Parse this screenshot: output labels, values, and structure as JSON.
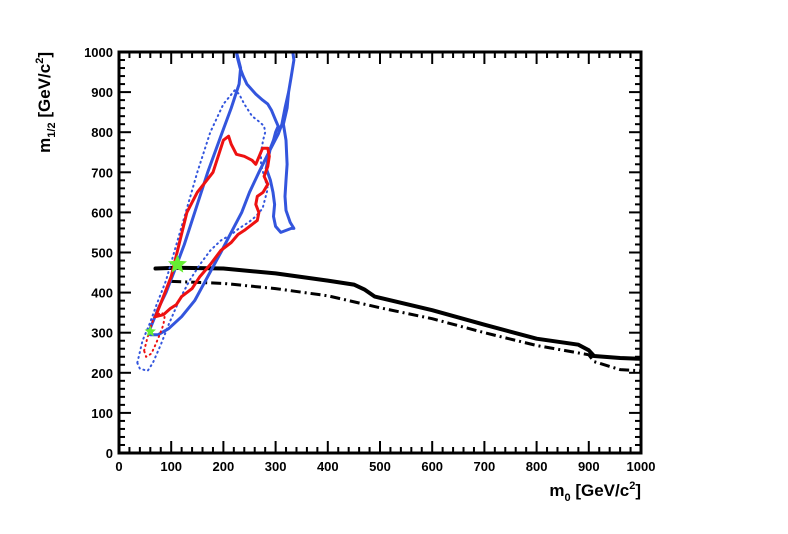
{
  "chart_data": {
    "type": "line",
    "title": "",
    "xlabel": {
      "base": "m",
      "sub": "0",
      "unit_pre": " [GeV/c",
      "sup": "2",
      "unit_post": "]"
    },
    "ylabel": {
      "base": "m",
      "sub": "1/2",
      "unit_pre": " [GeV/c",
      "sup": "2",
      "unit_post": "]"
    },
    "xlim": [
      0,
      1000
    ],
    "ylim": [
      0,
      1000
    ],
    "xticks": [
      0,
      100,
      200,
      300,
      400,
      500,
      600,
      700,
      800,
      900,
      1000
    ],
    "yticks": [
      0,
      100,
      200,
      300,
      400,
      500,
      600,
      700,
      800,
      900,
      1000
    ],
    "grid": false,
    "series": [
      {
        "name": "solid-black-limit",
        "color": "#000000",
        "style": "solid",
        "width": 4,
        "points": [
          [
            70,
            460
          ],
          [
            110,
            462
          ],
          [
            200,
            460
          ],
          [
            300,
            448
          ],
          [
            400,
            430
          ],
          [
            450,
            420
          ],
          [
            470,
            408
          ],
          [
            490,
            390
          ],
          [
            600,
            356
          ],
          [
            700,
            320
          ],
          [
            800,
            285
          ],
          [
            880,
            270
          ],
          [
            900,
            256
          ],
          [
            910,
            242
          ],
          [
            960,
            237
          ],
          [
            1000,
            235
          ]
        ]
      },
      {
        "name": "dashdot-black-limit",
        "color": "#000000",
        "style": "dashdot",
        "width": 3,
        "points": [
          [
            100,
            428
          ],
          [
            200,
            423
          ],
          [
            300,
            410
          ],
          [
            400,
            392
          ],
          [
            500,
            362
          ],
          [
            600,
            335
          ],
          [
            700,
            300
          ],
          [
            800,
            268
          ],
          [
            900,
            245
          ],
          [
            910,
            228
          ],
          [
            960,
            208
          ],
          [
            1000,
            205
          ]
        ]
      },
      {
        "name": "blue-solid-contour",
        "color": "#3355dd",
        "style": "solid",
        "width": 3,
        "points": [
          [
            58,
            305
          ],
          [
            75,
            360
          ],
          [
            90,
            400
          ],
          [
            105,
            450
          ],
          [
            125,
            520
          ],
          [
            145,
            600
          ],
          [
            170,
            700
          ],
          [
            195,
            790
          ],
          [
            215,
            860
          ],
          [
            230,
            920
          ],
          [
            233,
            960
          ],
          [
            228,
            985
          ],
          [
            225,
            1000
          ],
          [
            227,
            985
          ],
          [
            232,
            960
          ],
          [
            238,
            940
          ],
          [
            245,
            920
          ],
          [
            262,
            895
          ],
          [
            275,
            880
          ],
          [
            285,
            870
          ],
          [
            292,
            855
          ],
          [
            300,
            830
          ],
          [
            305,
            815
          ],
          [
            300,
            800
          ],
          [
            296,
            780
          ],
          [
            290,
            760
          ],
          [
            285,
            730
          ],
          [
            282,
            710
          ],
          [
            290,
            680
          ],
          [
            295,
            650
          ],
          [
            298,
            620
          ],
          [
            296,
            590
          ],
          [
            300,
            565
          ],
          [
            310,
            550
          ],
          [
            330,
            560
          ],
          [
            335,
            560
          ],
          [
            328,
            575
          ],
          [
            320,
            605
          ],
          [
            318,
            640
          ],
          [
            320,
            680
          ],
          [
            322,
            720
          ],
          [
            320,
            780
          ],
          [
            315,
            820
          ],
          [
            322,
            860
          ],
          [
            325,
            900
          ],
          [
            330,
            940
          ],
          [
            335,
            980
          ],
          [
            333,
            1000
          ],
          [
            335,
            980
          ],
          [
            330,
            940
          ],
          [
            325,
            900
          ],
          [
            318,
            860
          ],
          [
            312,
            820
          ],
          [
            305,
            795
          ],
          [
            295,
            770
          ],
          [
            285,
            745
          ],
          [
            268,
            700
          ],
          [
            250,
            650
          ],
          [
            235,
            600
          ],
          [
            215,
            550
          ],
          [
            195,
            500
          ],
          [
            170,
            440
          ],
          [
            145,
            380
          ],
          [
            120,
            340
          ],
          [
            95,
            310
          ],
          [
            75,
            295
          ],
          [
            60,
            295
          ],
          [
            58,
            305
          ]
        ]
      },
      {
        "name": "blue-dotted-contour",
        "color": "#3355dd",
        "style": "dotted",
        "width": 2,
        "points": [
          [
            35,
            225
          ],
          [
            45,
            280
          ],
          [
            58,
            320
          ],
          [
            72,
            370
          ],
          [
            90,
            430
          ],
          [
            110,
            520
          ],
          [
            130,
            610
          ],
          [
            150,
            700
          ],
          [
            175,
            800
          ],
          [
            200,
            870
          ],
          [
            222,
            905
          ],
          [
            230,
            895
          ],
          [
            240,
            870
          ],
          [
            255,
            840
          ],
          [
            270,
            825
          ],
          [
            278,
            815
          ],
          [
            280,
            800
          ],
          [
            276,
            780
          ],
          [
            272,
            750
          ],
          [
            272,
            720
          ],
          [
            278,
            690
          ],
          [
            285,
            660
          ],
          [
            280,
            635
          ],
          [
            275,
            610
          ],
          [
            262,
            590
          ],
          [
            248,
            575
          ],
          [
            230,
            560
          ],
          [
            215,
            545
          ],
          [
            195,
            530
          ],
          [
            175,
            505
          ],
          [
            155,
            470
          ],
          [
            135,
            430
          ],
          [
            115,
            380
          ],
          [
            95,
            320
          ],
          [
            80,
            270
          ],
          [
            65,
            225
          ],
          [
            55,
            205
          ],
          [
            40,
            210
          ],
          [
            35,
            225
          ]
        ]
      },
      {
        "name": "red-solid-contour",
        "color": "#ee1111",
        "style": "solid",
        "width": 3,
        "points": [
          [
            70,
            340
          ],
          [
            85,
            390
          ],
          [
            100,
            440
          ],
          [
            115,
            520
          ],
          [
            130,
            600
          ],
          [
            150,
            650
          ],
          [
            180,
            700
          ],
          [
            200,
            780
          ],
          [
            210,
            790
          ],
          [
            215,
            770
          ],
          [
            225,
            745
          ],
          [
            240,
            740
          ],
          [
            255,
            730
          ],
          [
            262,
            720
          ],
          [
            275,
            760
          ],
          [
            285,
            760
          ],
          [
            288,
            740
          ],
          [
            285,
            715
          ],
          [
            278,
            690
          ],
          [
            285,
            670
          ],
          [
            276,
            650
          ],
          [
            265,
            640
          ],
          [
            262,
            620
          ],
          [
            268,
            600
          ],
          [
            265,
            580
          ],
          [
            255,
            570
          ],
          [
            240,
            555
          ],
          [
            228,
            545
          ],
          [
            215,
            525
          ],
          [
            195,
            505
          ],
          [
            175,
            470
          ],
          [
            155,
            440
          ],
          [
            140,
            410
          ],
          [
            120,
            390
          ],
          [
            110,
            370
          ],
          [
            98,
            360
          ],
          [
            85,
            345
          ],
          [
            70,
            340
          ]
        ]
      },
      {
        "name": "red-dotted-contour",
        "color": "#ee1111",
        "style": "dotted",
        "width": 2,
        "points": [
          [
            48,
            255
          ],
          [
            55,
            290
          ],
          [
            62,
            320
          ],
          [
            68,
            340
          ],
          [
            80,
            350
          ],
          [
            88,
            345
          ],
          [
            85,
            320
          ],
          [
            78,
            295
          ],
          [
            70,
            270
          ],
          [
            62,
            248
          ],
          [
            52,
            240
          ],
          [
            48,
            255
          ]
        ]
      }
    ],
    "markers": [
      {
        "name": "best-fit-star",
        "x": 112,
        "y": 470,
        "color": "#66ee33",
        "size": 10
      },
      {
        "name": "secondary-star",
        "x": 60,
        "y": 303,
        "color": "#66ee33",
        "size": 6
      }
    ]
  }
}
